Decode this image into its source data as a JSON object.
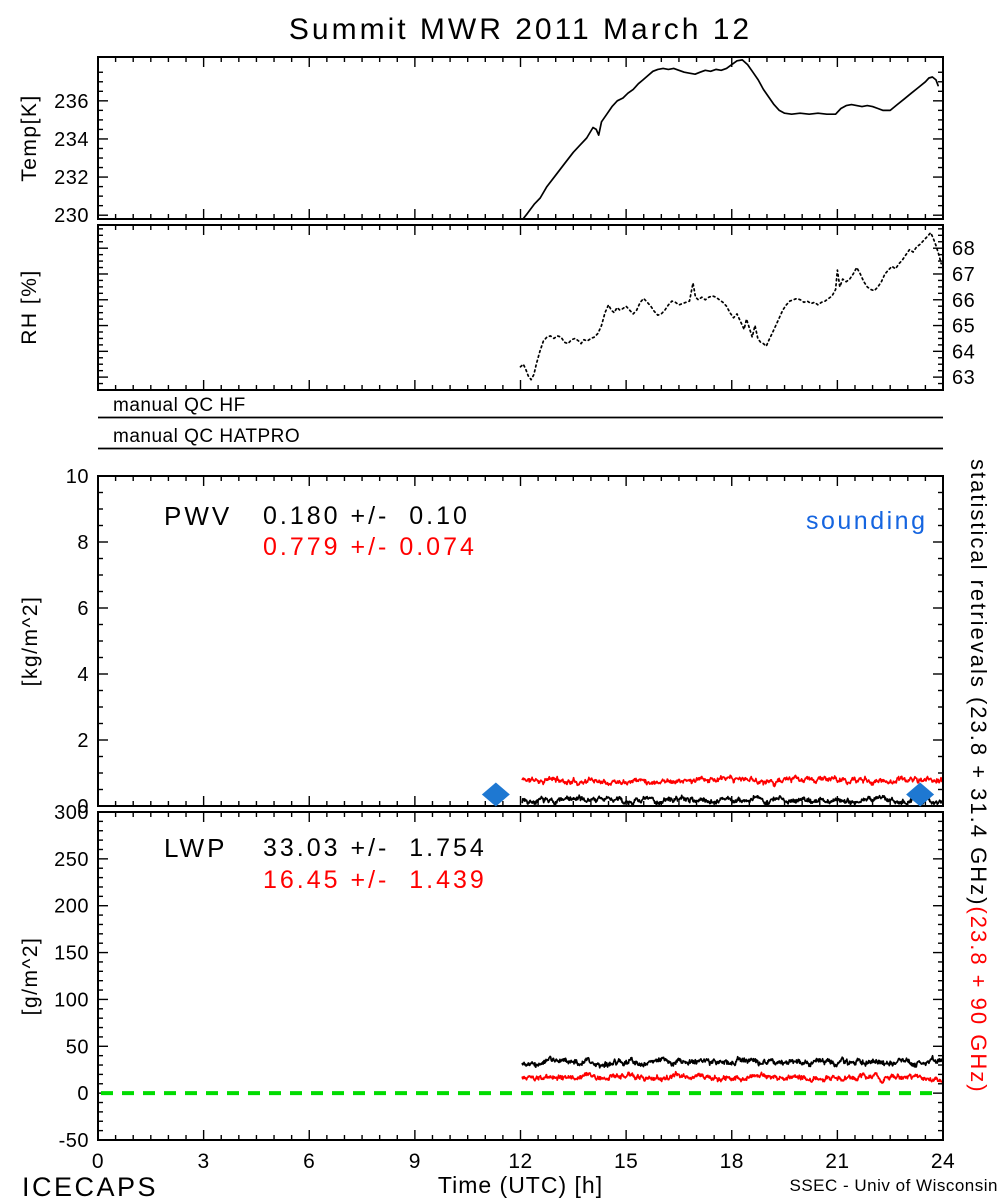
{
  "title": "Summit MWR 2011 March 12",
  "colors": {
    "line_black": "#000000",
    "line_red": "#FF0000",
    "zero_line_green": "#00DC00",
    "sounding_blue": "#1565E0",
    "diamond_blue": "#1E78D2"
  },
  "qc_strips": [
    {
      "label": "manual QC HF"
    },
    {
      "label": "manual QC HATPRO"
    }
  ],
  "pwv_panel": {
    "name_label": "PWV",
    "stat_black": "0.180 +/-  0.10",
    "stat_red": "0.779 +/- 0.074",
    "sounding_label": "sounding"
  },
  "lwp_panel": {
    "name_label": "LWP",
    "stat_black": "33.03 +/-  1.754",
    "stat_red": "16.45 +/-  1.439"
  },
  "right_annotation": {
    "black_text": "statistical retrievals (23.8 + 31.4 GHz)",
    "red_text": "(23.8 + 90 GHz)"
  },
  "footer": {
    "project": "ICECAPS",
    "xlabel": "Time (UTC) [h]",
    "credit": "SSEC - Univ of Wisconsin"
  },
  "chart_data": [
    {
      "id": "temp",
      "type": "line",
      "ylabel": "Temp[K]",
      "ylim": [
        229.8,
        238.3
      ],
      "yticks": [
        230,
        232,
        234,
        236
      ],
      "yminor": 0.5,
      "yticks_side": "left",
      "xlim": [
        0,
        24
      ],
      "xmajor": 3,
      "xminor": 0.5,
      "series": [
        {
          "name": "air-temperature",
          "color": "#000000",
          "style": "solid",
          "points": [
            [
              12.07,
              229.8
            ],
            [
              12.2,
              230.1
            ],
            [
              12.4,
              230.6
            ],
            [
              12.56,
              230.9
            ],
            [
              12.75,
              231.5
            ],
            [
              13.0,
              232.1
            ],
            [
              13.25,
              232.7
            ],
            [
              13.5,
              233.3
            ],
            [
              13.7,
              233.7
            ],
            [
              13.88,
              234.05
            ],
            [
              14.06,
              234.6
            ],
            [
              14.15,
              234.5
            ],
            [
              14.22,
              234.2
            ],
            [
              14.3,
              234.9
            ],
            [
              14.45,
              235.3
            ],
            [
              14.6,
              235.7
            ],
            [
              14.75,
              236.0
            ],
            [
              14.91,
              236.15
            ],
            [
              15.05,
              236.4
            ],
            [
              15.2,
              236.6
            ],
            [
              15.35,
              236.9
            ],
            [
              15.48,
              237.1
            ],
            [
              15.6,
              237.3
            ],
            [
              15.76,
              237.55
            ],
            [
              15.9,
              237.65
            ],
            [
              16.05,
              237.7
            ],
            [
              16.2,
              237.65
            ],
            [
              16.35,
              237.7
            ],
            [
              16.5,
              237.6
            ],
            [
              16.65,
              237.5
            ],
            [
              16.8,
              237.45
            ],
            [
              16.96,
              237.4
            ],
            [
              17.1,
              237.5
            ],
            [
              17.25,
              237.6
            ],
            [
              17.4,
              237.55
            ],
            [
              17.55,
              237.65
            ],
            [
              17.7,
              237.6
            ],
            [
              17.85,
              237.7
            ],
            [
              18.0,
              237.9
            ],
            [
              18.15,
              238.1
            ],
            [
              18.3,
              238.15
            ],
            [
              18.45,
              237.9
            ],
            [
              18.6,
              237.5
            ],
            [
              18.75,
              237.1
            ],
            [
              18.9,
              236.6
            ],
            [
              19.05,
              236.2
            ],
            [
              19.2,
              235.8
            ],
            [
              19.35,
              235.5
            ],
            [
              19.5,
              235.35
            ],
            [
              19.7,
              235.3
            ],
            [
              19.94,
              235.35
            ],
            [
              20.2,
              235.3
            ],
            [
              20.45,
              235.35
            ],
            [
              20.7,
              235.3
            ],
            [
              20.95,
              235.3
            ],
            [
              21.1,
              235.6
            ],
            [
              21.25,
              235.75
            ],
            [
              21.4,
              235.8
            ],
            [
              21.55,
              235.75
            ],
            [
              21.7,
              235.7
            ],
            [
              21.85,
              235.75
            ],
            [
              22.0,
              235.7
            ],
            [
              22.15,
              235.6
            ],
            [
              22.3,
              235.5
            ],
            [
              22.5,
              235.5
            ],
            [
              22.7,
              235.8
            ],
            [
              22.9,
              236.1
            ],
            [
              23.1,
              236.4
            ],
            [
              23.3,
              236.7
            ],
            [
              23.5,
              237.0
            ],
            [
              23.6,
              237.2
            ],
            [
              23.7,
              237.25
            ],
            [
              23.8,
              237.1
            ],
            [
              23.86,
              236.8
            ]
          ]
        }
      ]
    },
    {
      "id": "rh",
      "type": "line",
      "ylabel": "RH [%]",
      "ylim": [
        62.5,
        68.9
      ],
      "yticks": [
        63,
        64,
        65,
        66,
        67,
        68
      ],
      "yminor": 0.25,
      "yticks_side": "right",
      "xlim": [
        0,
        24
      ],
      "xmajor": 3,
      "xminor": 0.5,
      "series": [
        {
          "name": "relative-humidity",
          "color": "#000000",
          "style": "dotted",
          "points": [
            [
              12.0,
              63.4
            ],
            [
              12.08,
              63.5
            ],
            [
              12.15,
              63.3
            ],
            [
              12.22,
              63.05
            ],
            [
              12.3,
              62.9
            ],
            [
              12.38,
              63.1
            ],
            [
              12.45,
              63.5
            ],
            [
              12.55,
              64.0
            ],
            [
              12.65,
              64.4
            ],
            [
              12.75,
              64.55
            ],
            [
              12.85,
              64.6
            ],
            [
              12.95,
              64.5
            ],
            [
              13.05,
              64.6
            ],
            [
              13.15,
              64.55
            ],
            [
              13.25,
              64.35
            ],
            [
              13.35,
              64.3
            ],
            [
              13.45,
              64.45
            ],
            [
              13.55,
              64.5
            ],
            [
              13.65,
              64.4
            ],
            [
              13.72,
              64.3
            ],
            [
              13.8,
              64.45
            ],
            [
              13.9,
              64.4
            ],
            [
              14.0,
              64.5
            ],
            [
              14.1,
              64.55
            ],
            [
              14.2,
              64.7
            ],
            [
              14.3,
              65.0
            ],
            [
              14.4,
              65.5
            ],
            [
              14.5,
              65.8
            ],
            [
              14.58,
              65.6
            ],
            [
              14.66,
              65.5
            ],
            [
              14.74,
              65.7
            ],
            [
              14.82,
              65.6
            ],
            [
              14.9,
              65.65
            ],
            [
              15.0,
              65.75
            ],
            [
              15.1,
              65.6
            ],
            [
              15.2,
              65.45
            ],
            [
              15.3,
              65.6
            ],
            [
              15.4,
              65.9
            ],
            [
              15.5,
              66.05
            ],
            [
              15.6,
              65.9
            ],
            [
              15.7,
              65.75
            ],
            [
              15.8,
              65.55
            ],
            [
              15.9,
              65.4
            ],
            [
              16.0,
              65.45
            ],
            [
              16.1,
              65.6
            ],
            [
              16.2,
              65.8
            ],
            [
              16.3,
              65.95
            ],
            [
              16.4,
              65.9
            ],
            [
              16.5,
              65.8
            ],
            [
              16.6,
              65.85
            ],
            [
              16.7,
              65.9
            ],
            [
              16.8,
              65.95
            ],
            [
              16.9,
              66.65
            ],
            [
              16.97,
              66.1
            ],
            [
              17.05,
              66.0
            ],
            [
              17.15,
              66.1
            ],
            [
              17.25,
              66.0
            ],
            [
              17.35,
              66.1
            ],
            [
              17.45,
              66.15
            ],
            [
              17.55,
              66.1
            ],
            [
              17.65,
              66.0
            ],
            [
              17.75,
              65.9
            ],
            [
              17.85,
              65.75
            ],
            [
              17.95,
              65.5
            ],
            [
              18.05,
              65.3
            ],
            [
              18.15,
              65.45
            ],
            [
              18.25,
              65.15
            ],
            [
              18.35,
              64.85
            ],
            [
              18.42,
              65.25
            ],
            [
              18.5,
              64.9
            ],
            [
              18.58,
              64.55
            ],
            [
              18.66,
              65.0
            ],
            [
              18.74,
              64.5
            ],
            [
              18.82,
              64.35
            ],
            [
              18.9,
              64.3
            ],
            [
              18.98,
              64.2
            ],
            [
              19.06,
              64.45
            ],
            [
              19.15,
              64.7
            ],
            [
              19.25,
              65.0
            ],
            [
              19.35,
              65.3
            ],
            [
              19.45,
              65.6
            ],
            [
              19.55,
              65.8
            ],
            [
              19.65,
              65.95
            ],
            [
              19.75,
              66.0
            ],
            [
              19.85,
              66.05
            ],
            [
              19.95,
              66.0
            ],
            [
              20.05,
              65.9
            ],
            [
              20.15,
              65.95
            ],
            [
              20.25,
              65.85
            ],
            [
              20.35,
              65.9
            ],
            [
              20.45,
              65.8
            ],
            [
              20.55,
              65.9
            ],
            [
              20.65,
              65.95
            ],
            [
              20.75,
              66.05
            ],
            [
              20.85,
              66.15
            ],
            [
              20.95,
              66.4
            ],
            [
              21.0,
              67.15
            ],
            [
              21.07,
              66.5
            ],
            [
              21.15,
              66.8
            ],
            [
              21.25,
              66.7
            ],
            [
              21.35,
              66.8
            ],
            [
              21.45,
              67.0
            ],
            [
              21.55,
              67.25
            ],
            [
              21.65,
              67.0
            ],
            [
              21.75,
              66.7
            ],
            [
              21.85,
              66.5
            ],
            [
              21.95,
              66.4
            ],
            [
              22.05,
              66.35
            ],
            [
              22.15,
              66.5
            ],
            [
              22.25,
              66.7
            ],
            [
              22.35,
              67.0
            ],
            [
              22.45,
              67.15
            ],
            [
              22.55,
              67.3
            ],
            [
              22.65,
              67.2
            ],
            [
              22.75,
              67.4
            ],
            [
              22.85,
              67.55
            ],
            [
              22.95,
              67.75
            ],
            [
              23.05,
              67.95
            ],
            [
              23.15,
              67.85
            ],
            [
              23.25,
              68.05
            ],
            [
              23.35,
              68.15
            ],
            [
              23.45,
              68.3
            ],
            [
              23.55,
              68.45
            ],
            [
              23.65,
              68.6
            ],
            [
              23.72,
              68.4
            ],
            [
              23.8,
              68.1
            ],
            [
              23.88,
              67.75
            ],
            [
              23.95,
              67.4
            ]
          ]
        }
      ]
    },
    {
      "id": "pwv",
      "type": "line",
      "ylabel": "[kg/m^2]",
      "ylim": [
        0,
        10
      ],
      "yticks": [
        0,
        2,
        4,
        6,
        8,
        10
      ],
      "yminor": 0.5,
      "yticks_side": "left",
      "xlim": [
        0,
        24
      ],
      "xmajor": 3,
      "xminor": 0.5,
      "stats": {
        "black_mean": 0.18,
        "black_sigma": 0.1,
        "red_mean": 0.779,
        "red_sigma": 0.074
      },
      "series": [
        {
          "name": "pwv-23.8-90GHz",
          "color": "#FF0000",
          "style": "noisy",
          "mean": 0.779,
          "start": 12.05,
          "end": 23.97,
          "jitter": 0.09,
          "wave": 0.05,
          "seed": 11
        },
        {
          "name": "pwv-23.8-31.4GHz",
          "color": "#000000",
          "style": "noisy",
          "mean": 0.18,
          "start": 12.05,
          "end": 23.97,
          "jitter": 0.1,
          "wave": 0.05,
          "seed": 7
        },
        {
          "name": "sounding-pwv",
          "color": "#1E78D2",
          "style": "diamond",
          "points": [
            [
              11.3,
              0.35
            ],
            [
              23.35,
              0.35
            ]
          ]
        }
      ]
    },
    {
      "id": "lwp",
      "type": "line",
      "ylabel": "[g/m^2]",
      "ylim": [
        -50,
        300
      ],
      "yticks": [
        -50,
        0,
        50,
        100,
        150,
        200,
        250,
        300
      ],
      "yminor": 10,
      "yticks_side": "left",
      "xlim": [
        0,
        24
      ],
      "xmajor": 3,
      "xminor": 0.5,
      "xticks": [
        0,
        3,
        6,
        9,
        12,
        15,
        18,
        21,
        24
      ],
      "show_xtick_labels": true,
      "stats": {
        "black_mean": 33.03,
        "black_sigma": 1.754,
        "red_mean": 16.45,
        "red_sigma": 1.439
      },
      "series": [
        {
          "name": "zero-reference",
          "color": "#00DC00",
          "style": "dashed-hline",
          "value": 0
        },
        {
          "name": "lwp-23.8-90GHz",
          "color": "#FF0000",
          "style": "noisy",
          "mean": 16.45,
          "start": 12.05,
          "end": 23.97,
          "jitter": 3.2,
          "wave": 1.4,
          "seed": 33
        },
        {
          "name": "lwp-23.8-31.4GHz",
          "color": "#000000",
          "style": "noisy",
          "mean": 33.0,
          "start": 12.05,
          "end": 23.97,
          "jitter": 3.8,
          "wave": 1.8,
          "seed": 21
        }
      ]
    }
  ]
}
